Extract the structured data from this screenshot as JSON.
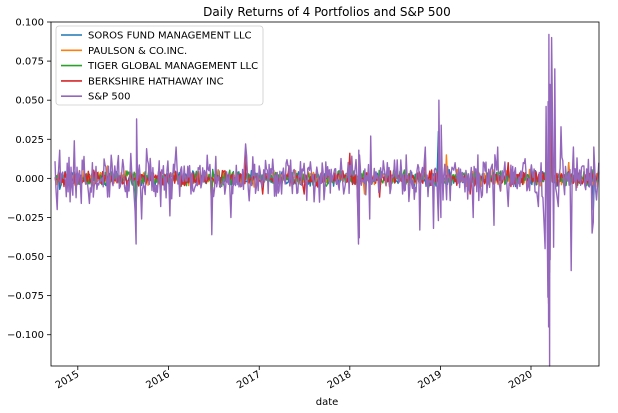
{
  "chart_data": {
    "type": "line",
    "title": "Daily Returns of 4 Portfolios and S&P 500",
    "xlabel": "date",
    "ylabel": "",
    "xlim": [
      "2014-09-15",
      "2020-10-01"
    ],
    "ylim": [
      -0.12,
      0.1
    ],
    "x_ticks": [
      "2015",
      "2016",
      "2017",
      "2018",
      "2019",
      "2020"
    ],
    "y_ticks": [
      {
        "value": 0.1,
        "label": "0.100"
      },
      {
        "value": 0.075,
        "label": "0.075"
      },
      {
        "value": 0.05,
        "label": "0.050"
      },
      {
        "value": 0.025,
        "label": "0.025"
      },
      {
        "value": 0.0,
        "label": "0.000"
      },
      {
        "value": -0.025,
        "label": "−0.025"
      },
      {
        "value": -0.05,
        "label": "−0.050"
      },
      {
        "value": -0.075,
        "label": "−0.075"
      },
      {
        "value": -0.1,
        "label": "−0.100"
      }
    ],
    "legend_position": "top-left",
    "grid": false,
    "series": [
      {
        "name": "SOROS FUND MANAGEMENT LLC",
        "color": "#1f77b4",
        "points": [
          [
            "2014-10-01",
            0.0
          ],
          [
            "2014-10-20",
            -0.007
          ],
          [
            "2015-03-01",
            0.004
          ],
          [
            "2015-08-24",
            -0.02
          ],
          [
            "2016-06-24",
            -0.02
          ],
          [
            "2017-06-01",
            0.003
          ],
          [
            "2018-02-05",
            -0.025
          ],
          [
            "2018-12-24",
            0.03
          ],
          [
            "2019-06-01",
            0.003
          ],
          [
            "2020-03-12",
            -0.07
          ],
          [
            "2020-03-24",
            0.05
          ],
          [
            "2020-06-01",
            0.01
          ],
          [
            "2020-09-08",
            -0.02
          ],
          [
            "2020-09-30",
            0.005
          ]
        ]
      },
      {
        "name": "PAULSON & CO.INC.",
        "color": "#ff7f0e",
        "points": [
          [
            "2014-10-01",
            0.0
          ],
          [
            "2015-05-01",
            0.008
          ],
          [
            "2015-12-01",
            -0.01
          ],
          [
            "2016-06-24",
            -0.02
          ],
          [
            "2017-03-01",
            0.005
          ],
          [
            "2018-03-01",
            -0.01
          ],
          [
            "2019-01-25",
            0.015
          ],
          [
            "2019-04-15",
            -0.005
          ],
          [
            "2019-09-01",
            -0.008
          ],
          [
            "2020-03-16",
            -0.05
          ],
          [
            "2020-03-24",
            0.04
          ],
          [
            "2020-06-01",
            0.01
          ],
          [
            "2020-09-30",
            0.004
          ]
        ]
      },
      {
        "name": "TIGER GLOBAL MANAGEMENT LLC",
        "color": "#2ca02c",
        "points": [
          [
            "2014-10-01",
            0.0
          ],
          [
            "2015-08-24",
            -0.015
          ],
          [
            "2016-06-24",
            -0.01
          ],
          [
            "2017-06-01",
            0.003
          ],
          [
            "2018-02-05",
            -0.012
          ],
          [
            "2018-12-26",
            0.01
          ],
          [
            "2019-06-01",
            0.002
          ],
          [
            "2020-03-16",
            -0.06
          ],
          [
            "2020-03-24",
            0.04
          ],
          [
            "2020-09-30",
            0.004
          ]
        ]
      },
      {
        "name": "BERKSHIRE HATHAWAY INC",
        "color": "#d62728",
        "points": [
          [
            "2014-10-01",
            0.0
          ],
          [
            "2016-11-10",
            0.016
          ],
          [
            "2017-01-15",
            -0.01
          ],
          [
            "2017-05-01",
            0.008
          ],
          [
            "2017-07-01",
            -0.01
          ],
          [
            "2018-01-01",
            0.016
          ],
          [
            "2018-02-05",
            -0.03
          ],
          [
            "2018-05-01",
            -0.012
          ],
          [
            "2018-11-01",
            0.014
          ],
          [
            "2019-05-01",
            -0.01
          ],
          [
            "2019-10-01",
            0.01
          ],
          [
            "2020-03-12",
            -0.08
          ],
          [
            "2020-03-24",
            0.05
          ],
          [
            "2020-09-30",
            0.004
          ]
        ]
      },
      {
        "name": "S&P 500",
        "color": "#9467bd",
        "points": [
          [
            "2014-10-01",
            0.011
          ],
          [
            "2014-10-10",
            -0.02
          ],
          [
            "2014-10-20",
            0.018
          ],
          [
            "2014-11-01",
            0.004
          ],
          [
            "2014-12-01",
            -0.015
          ],
          [
            "2014-12-18",
            0.024
          ],
          [
            "2015-01-15",
            -0.016
          ],
          [
            "2015-03-01",
            0.01
          ],
          [
            "2015-05-01",
            -0.012
          ],
          [
            "2015-07-01",
            0.012
          ],
          [
            "2015-08-20",
            -0.021
          ],
          [
            "2015-08-24",
            -0.042
          ],
          [
            "2015-08-26",
            0.038
          ],
          [
            "2015-09-15",
            -0.026
          ],
          [
            "2015-10-05",
            0.019
          ],
          [
            "2015-12-01",
            -0.018
          ],
          [
            "2016-01-07",
            -0.024
          ],
          [
            "2016-02-01",
            0.02
          ],
          [
            "2016-04-01",
            -0.01
          ],
          [
            "2016-06-24",
            -0.036
          ],
          [
            "2016-07-10",
            0.014
          ],
          [
            "2016-09-09",
            -0.025
          ],
          [
            "2016-11-07",
            0.022
          ],
          [
            "2017-01-01",
            0.008
          ],
          [
            "2017-04-01",
            -0.01
          ],
          [
            "2017-08-10",
            -0.015
          ],
          [
            "2017-11-01",
            0.006
          ],
          [
            "2018-01-26",
            0.012
          ],
          [
            "2018-02-05",
            -0.042
          ],
          [
            "2018-02-06",
            0.018
          ],
          [
            "2018-02-08",
            -0.038
          ],
          [
            "2018-02-09",
            0.015
          ],
          [
            "2018-03-22",
            -0.026
          ],
          [
            "2018-03-26",
            0.027
          ],
          [
            "2018-06-01",
            0.01
          ],
          [
            "2018-10-10",
            -0.033
          ],
          [
            "2018-11-01",
            0.02
          ],
          [
            "2018-12-04",
            -0.032
          ],
          [
            "2018-12-24",
            -0.027
          ],
          [
            "2018-12-26",
            0.05
          ],
          [
            "2019-01-03",
            -0.025
          ],
          [
            "2019-01-04",
            0.034
          ],
          [
            "2019-03-01",
            0.01
          ],
          [
            "2019-05-13",
            -0.025
          ],
          [
            "2019-06-01",
            0.015
          ],
          [
            "2019-08-05",
            -0.03
          ],
          [
            "2019-08-20",
            0.02
          ],
          [
            "2019-10-01",
            -0.018
          ],
          [
            "2019-12-01",
            0.01
          ],
          [
            "2020-01-31",
            -0.018
          ],
          [
            "2020-02-24",
            -0.034
          ],
          [
            "2020-02-27",
            -0.045
          ],
          [
            "2020-03-02",
            0.046
          ],
          [
            "2020-03-09",
            -0.076
          ],
          [
            "2020-03-10",
            0.049
          ],
          [
            "2020-03-12",
            -0.095
          ],
          [
            "2020-03-13",
            0.092
          ],
          [
            "2020-03-16",
            -0.12
          ],
          [
            "2020-03-17",
            0.06
          ],
          [
            "2020-03-18",
            -0.052
          ],
          [
            "2020-03-24",
            0.09
          ],
          [
            "2020-03-26",
            0.062
          ],
          [
            "2020-04-01",
            -0.044
          ],
          [
            "2020-04-06",
            0.07
          ],
          [
            "2020-04-20",
            -0.018
          ],
          [
            "2020-05-01",
            0.033
          ],
          [
            "2020-06-11",
            -0.059
          ],
          [
            "2020-06-20",
            0.02
          ],
          [
            "2020-08-01",
            0.008
          ],
          [
            "2020-09-03",
            -0.035
          ],
          [
            "2020-09-08",
            -0.028
          ],
          [
            "2020-09-10",
            0.02
          ],
          [
            "2020-09-30",
            0.01
          ]
        ]
      }
    ]
  }
}
